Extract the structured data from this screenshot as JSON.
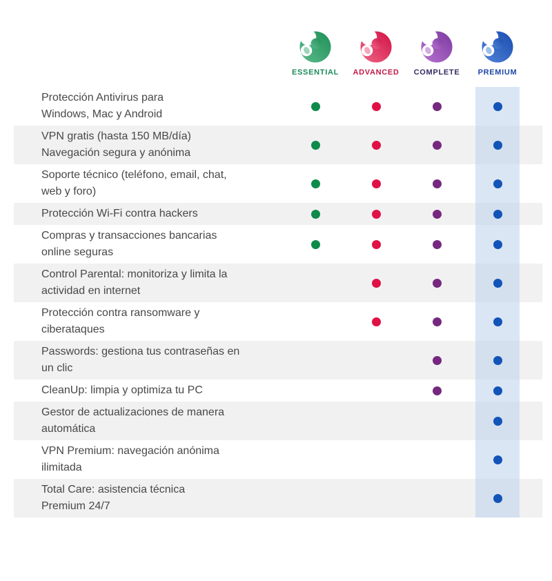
{
  "plans": [
    {
      "id": "essential",
      "label": "ESSENTIAL",
      "label_color": "#1d8a5e",
      "dot_color": "#0c8b4a",
      "logo_light": "#5cbb8c",
      "logo_dark": "#1e8f57",
      "leaf_color": "#9ed4ba"
    },
    {
      "id": "advanced",
      "label": "ADVANCED",
      "label_color": "#c2194b",
      "dot_color": "#e01145",
      "logo_light": "#f06687",
      "logo_dark": "#d01346",
      "leaf_color": "#f3a8bb"
    },
    {
      "id": "complete",
      "label": "COMPLETE",
      "label_color": "#332d62",
      "dot_color": "#76287f",
      "logo_light": "#b873d1",
      "logo_dark": "#7c3aa0",
      "leaf_color": "#d4abe3"
    },
    {
      "id": "premium",
      "label": "PREMIUM",
      "label_color": "#1e47a8",
      "dot_color": "#1254b8",
      "logo_light": "#5083d8",
      "logo_dark": "#1a4cb0",
      "leaf_color": "#9fbfe8",
      "column_highlight": "rgba(187,209,235,0.55)"
    }
  ],
  "table": {
    "alt_row_background": "#f1f1f2",
    "rows": [
      {
        "feature": "Protección Antivirus para\nWindows, Mac y Android",
        "included": [
          true,
          true,
          true,
          true
        ]
      },
      {
        "feature": "VPN gratis (hasta 150 MB/día)\nNavegación segura y anónima",
        "included": [
          true,
          true,
          true,
          true
        ]
      },
      {
        "feature": "Soporte técnico (teléfono, email, chat,\nweb y foro)",
        "included": [
          true,
          true,
          true,
          true
        ]
      },
      {
        "feature": "Protección Wi-Fi contra hackers",
        "included": [
          true,
          true,
          true,
          true
        ]
      },
      {
        "feature": "Compras y transacciones bancarias\nonline seguras",
        "included": [
          true,
          true,
          true,
          true
        ]
      },
      {
        "feature": "Control Parental: monitoriza y limita la\nactividad en internet",
        "included": [
          false,
          true,
          true,
          true
        ]
      },
      {
        "feature": "Protección contra ransomware y\nciberataques",
        "included": [
          false,
          true,
          true,
          true
        ]
      },
      {
        "feature": "Passwords: gestiona tus contraseñas en\nun clic",
        "included": [
          false,
          false,
          true,
          true
        ]
      },
      {
        "feature": "CleanUp: limpia y optimiza tu PC",
        "included": [
          false,
          false,
          true,
          true
        ]
      },
      {
        "feature": "Gestor de actualizaciones de manera\nautomática",
        "included": [
          false,
          false,
          false,
          true
        ]
      },
      {
        "feature": "VPN Premium: navegación anónima\nilimitada",
        "included": [
          false,
          false,
          false,
          true
        ]
      },
      {
        "feature": "Total Care: asistencia técnica\nPremium 24/7",
        "included": [
          false,
          false,
          false,
          true
        ]
      }
    ]
  }
}
